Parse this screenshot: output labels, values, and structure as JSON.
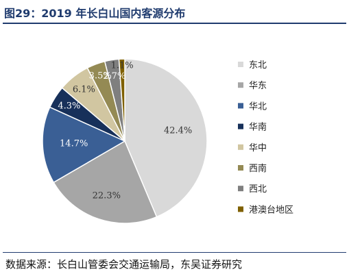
{
  "title": "图29：2019 年长白山国内客源分布",
  "source": "数据来源：长白山管委会交通运输局，东吴证券研究",
  "chart_data": {
    "type": "pie",
    "start_angle_deg": 0,
    "direction": "clockwise",
    "categories": [
      "东北",
      "华东",
      "华北",
      "华南",
      "华中",
      "西南",
      "西北",
      "港澳台地区"
    ],
    "values": [
      42.4,
      22.3,
      14.7,
      4.3,
      6.1,
      3.5,
      2.7,
      1.1
    ],
    "data_labels": [
      "42.4%",
      "22.3%",
      "14.7%",
      "4.3%",
      "6.1%",
      "3.5%",
      "2.7%",
      "1.1%"
    ],
    "colors": [
      "#d9d9d9",
      "#a6a6a6",
      "#3a5f95",
      "#17305a",
      "#d1c6a1",
      "#948a54",
      "#7f7f7f",
      "#7f6000"
    ],
    "legend_position": "right"
  }
}
